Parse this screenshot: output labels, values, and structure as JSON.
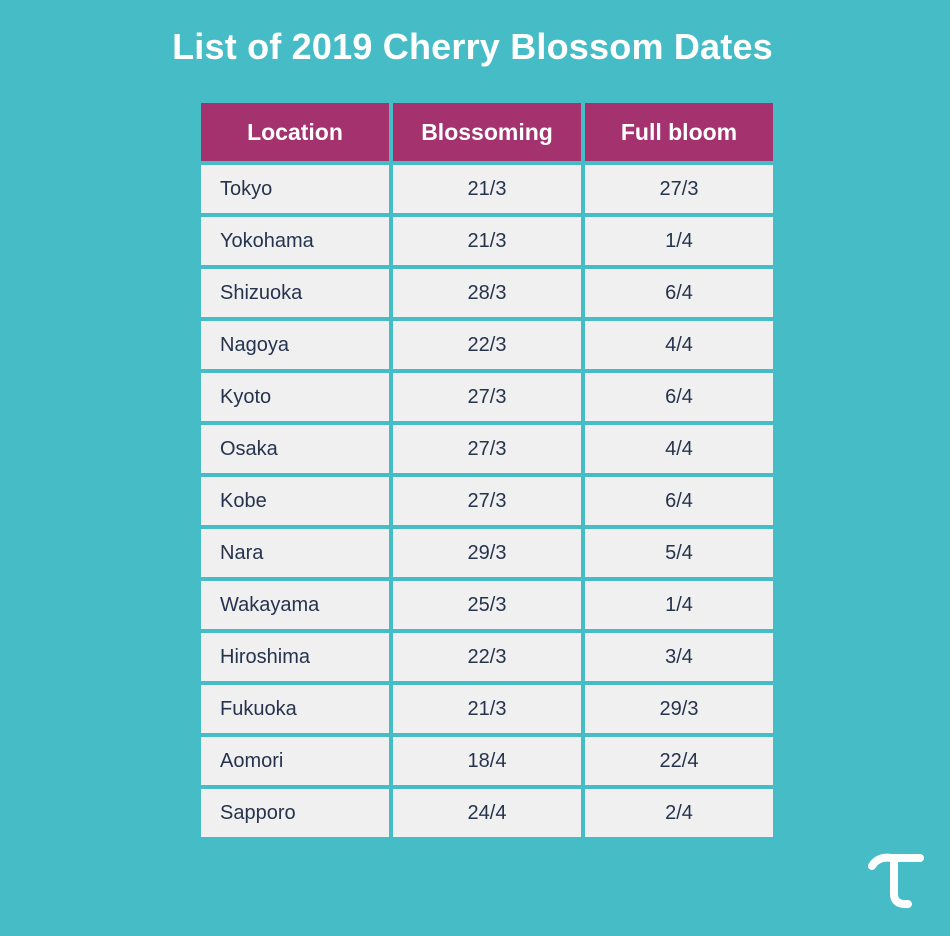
{
  "colors": {
    "background": "#46bcc7",
    "header": "#a3326f",
    "cell": "#f0f0f0",
    "cell_text": "#26334d",
    "logo": "#ffffff"
  },
  "logo": {
    "icon": "tau-logo-icon"
  },
  "chart_data": {
    "type": "table",
    "title": "List of 2019 Cherry Blossom Dates",
    "columns": [
      "Location",
      "Blossoming",
      "Full bloom"
    ],
    "rows": [
      [
        "Tokyo",
        "21/3",
        "27/3"
      ],
      [
        "Yokohama",
        "21/3",
        "1/4"
      ],
      [
        "Shizuoka",
        "28/3",
        "6/4"
      ],
      [
        "Nagoya",
        "22/3",
        "4/4"
      ],
      [
        "Kyoto",
        "27/3",
        "6/4"
      ],
      [
        "Osaka",
        "27/3",
        "4/4"
      ],
      [
        "Kobe",
        "27/3",
        "6/4"
      ],
      [
        "Nara",
        "29/3",
        "5/4"
      ],
      [
        "Wakayama",
        "25/3",
        "1/4"
      ],
      [
        "Hiroshima",
        "22/3",
        "3/4"
      ],
      [
        "Fukuoka",
        "21/3",
        "29/3"
      ],
      [
        "Aomori",
        "18/4",
        "22/4"
      ],
      [
        "Sapporo",
        "24/4",
        "2/4"
      ]
    ]
  }
}
